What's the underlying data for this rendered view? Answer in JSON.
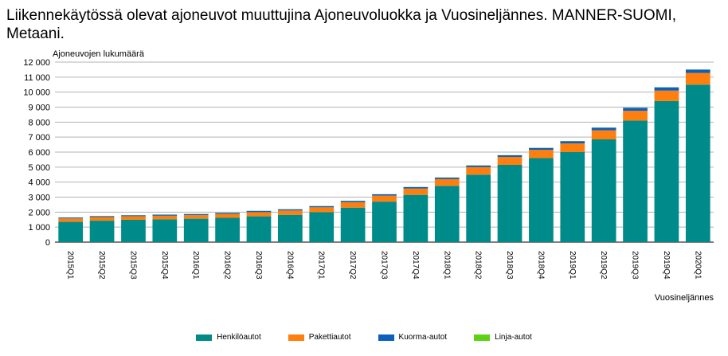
{
  "title": "Liikennekäytössä olevat ajoneuvot muuttujina Ajoneuvoluokka ja Vuosineljännes. MANNER-SUOMI, Metaani.",
  "chart_data": {
    "type": "bar",
    "stacked": true,
    "ylabel": "Ajoneuvojen lukumäärä",
    "xlabel": "Vuosineljännes",
    "ylim": [
      0,
      12000
    ],
    "yticks": [
      0,
      1000,
      2000,
      3000,
      4000,
      5000,
      6000,
      7000,
      8000,
      9000,
      10000,
      11000,
      12000
    ],
    "ytick_labels": [
      "0",
      "1 000",
      "2 000",
      "3 000",
      "4 000",
      "5 000",
      "6 000",
      "7 000",
      "8 000",
      "9 000",
      "10 000",
      "11 000",
      "12 000"
    ],
    "grid": true,
    "legend_position": "bottom",
    "categories": [
      "2015Q1",
      "2015Q2",
      "2015Q3",
      "2015Q4",
      "2016Q1",
      "2016Q2",
      "2016Q3",
      "2016Q4",
      "2017Q1",
      "2017Q2",
      "2017Q3",
      "2017Q4",
      "2018Q1",
      "2018Q2",
      "2018Q3",
      "2018Q4",
      "2019Q1",
      "2019Q2",
      "2019Q3",
      "2019Q4",
      "2020Q1"
    ],
    "series": [
      {
        "name": "Henkilöautot",
        "color": "#008b8b",
        "values": [
          1350,
          1430,
          1490,
          1520,
          1560,
          1620,
          1720,
          1820,
          2000,
          2300,
          2700,
          3150,
          3750,
          4500,
          5150,
          5600,
          6000,
          6850,
          8100,
          9400,
          10500
        ]
      },
      {
        "name": "Pakettiautot",
        "color": "#ff7f0e",
        "values": [
          230,
          240,
          240,
          240,
          240,
          260,
          280,
          290,
          320,
          360,
          400,
          420,
          450,
          500,
          530,
          550,
          580,
          600,
          650,
          700,
          780
        ]
      },
      {
        "name": "Kuorma-autot",
        "color": "#0d5fbd",
        "values": [
          60,
          60,
          60,
          70,
          70,
          70,
          80,
          80,
          80,
          90,
          90,
          100,
          100,
          110,
          110,
          130,
          150,
          180,
          200,
          220,
          220
        ]
      },
      {
        "name": "Linja-autot",
        "color": "#5cd214",
        "values": [
          10,
          10,
          10,
          10,
          10,
          10,
          10,
          10,
          10,
          10,
          10,
          10,
          10,
          10,
          10,
          10,
          10,
          10,
          10,
          10,
          10
        ]
      }
    ]
  }
}
